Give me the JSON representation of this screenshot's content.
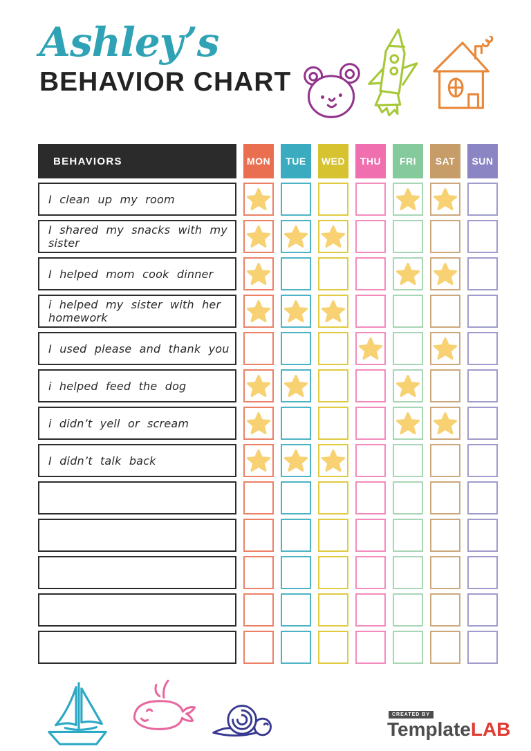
{
  "header": {
    "script_title": "Ashley’s",
    "script_title_color": "#2FA3B5",
    "main_title": "BEHAVIOR CHART"
  },
  "doodles": {
    "top": [
      "bear",
      "rocket",
      "house"
    ],
    "bottom": [
      "sailboat",
      "whale",
      "snail"
    ],
    "colors": {
      "bear": "#93348C",
      "rocket": "#A6C838",
      "house": "#E8883A",
      "sailboat": "#2BA8C4",
      "whale": "#E8679F",
      "snail": "#37388F"
    }
  },
  "table": {
    "behaviors_header": "BEHAVIORS",
    "header_bg": "#2B2B2B",
    "star_color": "#F7D172",
    "days": [
      {
        "label": "MON",
        "color": "#E96F50",
        "cell_border": "#EC8066"
      },
      {
        "label": "TUE",
        "color": "#3BACBF",
        "cell_border": "#4DB3C5"
      },
      {
        "label": "WED",
        "color": "#D7C22F",
        "cell_border": "#DFCA41"
      },
      {
        "label": "THU",
        "color": "#F06FAF",
        "cell_border": "#F38ABC"
      },
      {
        "label": "FRI",
        "color": "#85CA9D",
        "cell_border": "#A8D5B5"
      },
      {
        "label": "SAT",
        "color": "#C69C68",
        "cell_border": "#CCA87C"
      },
      {
        "label": "SUN",
        "color": "#8B86C3",
        "cell_border": "#9F9BCC"
      }
    ],
    "rows": [
      {
        "behavior": "I clean up my room",
        "stars": [
          "MON",
          "FRI",
          "SAT"
        ]
      },
      {
        "behavior": "I shared my snacks with my sister",
        "stars": [
          "MON",
          "TUE",
          "WED"
        ]
      },
      {
        "behavior": "I helped mom cook dinner",
        "stars": [
          "MON",
          "FRI",
          "SAT"
        ]
      },
      {
        "behavior": "i helped my sister with her homework",
        "stars": [
          "MON",
          "TUE",
          "WED"
        ]
      },
      {
        "behavior": "I used please and thank you",
        "stars": [
          "THU",
          "SAT"
        ]
      },
      {
        "behavior": "i helped feed the dog",
        "stars": [
          "MON",
          "TUE",
          "FRI"
        ]
      },
      {
        "behavior": "i didn’t yell or scream",
        "stars": [
          "MON",
          "FRI",
          "SAT"
        ]
      },
      {
        "behavior": "I didn’t talk back",
        "stars": [
          "MON",
          "TUE",
          "WED"
        ]
      },
      {
        "behavior": "",
        "stars": []
      },
      {
        "behavior": "",
        "stars": []
      },
      {
        "behavior": "",
        "stars": []
      },
      {
        "behavior": "",
        "stars": []
      },
      {
        "behavior": "",
        "stars": []
      }
    ]
  },
  "footer": {
    "created_by": "CREATED BY",
    "brand_name": "Template",
    "brand_suffix": "LAB",
    "brand_suffix_color": "#E03C31"
  }
}
